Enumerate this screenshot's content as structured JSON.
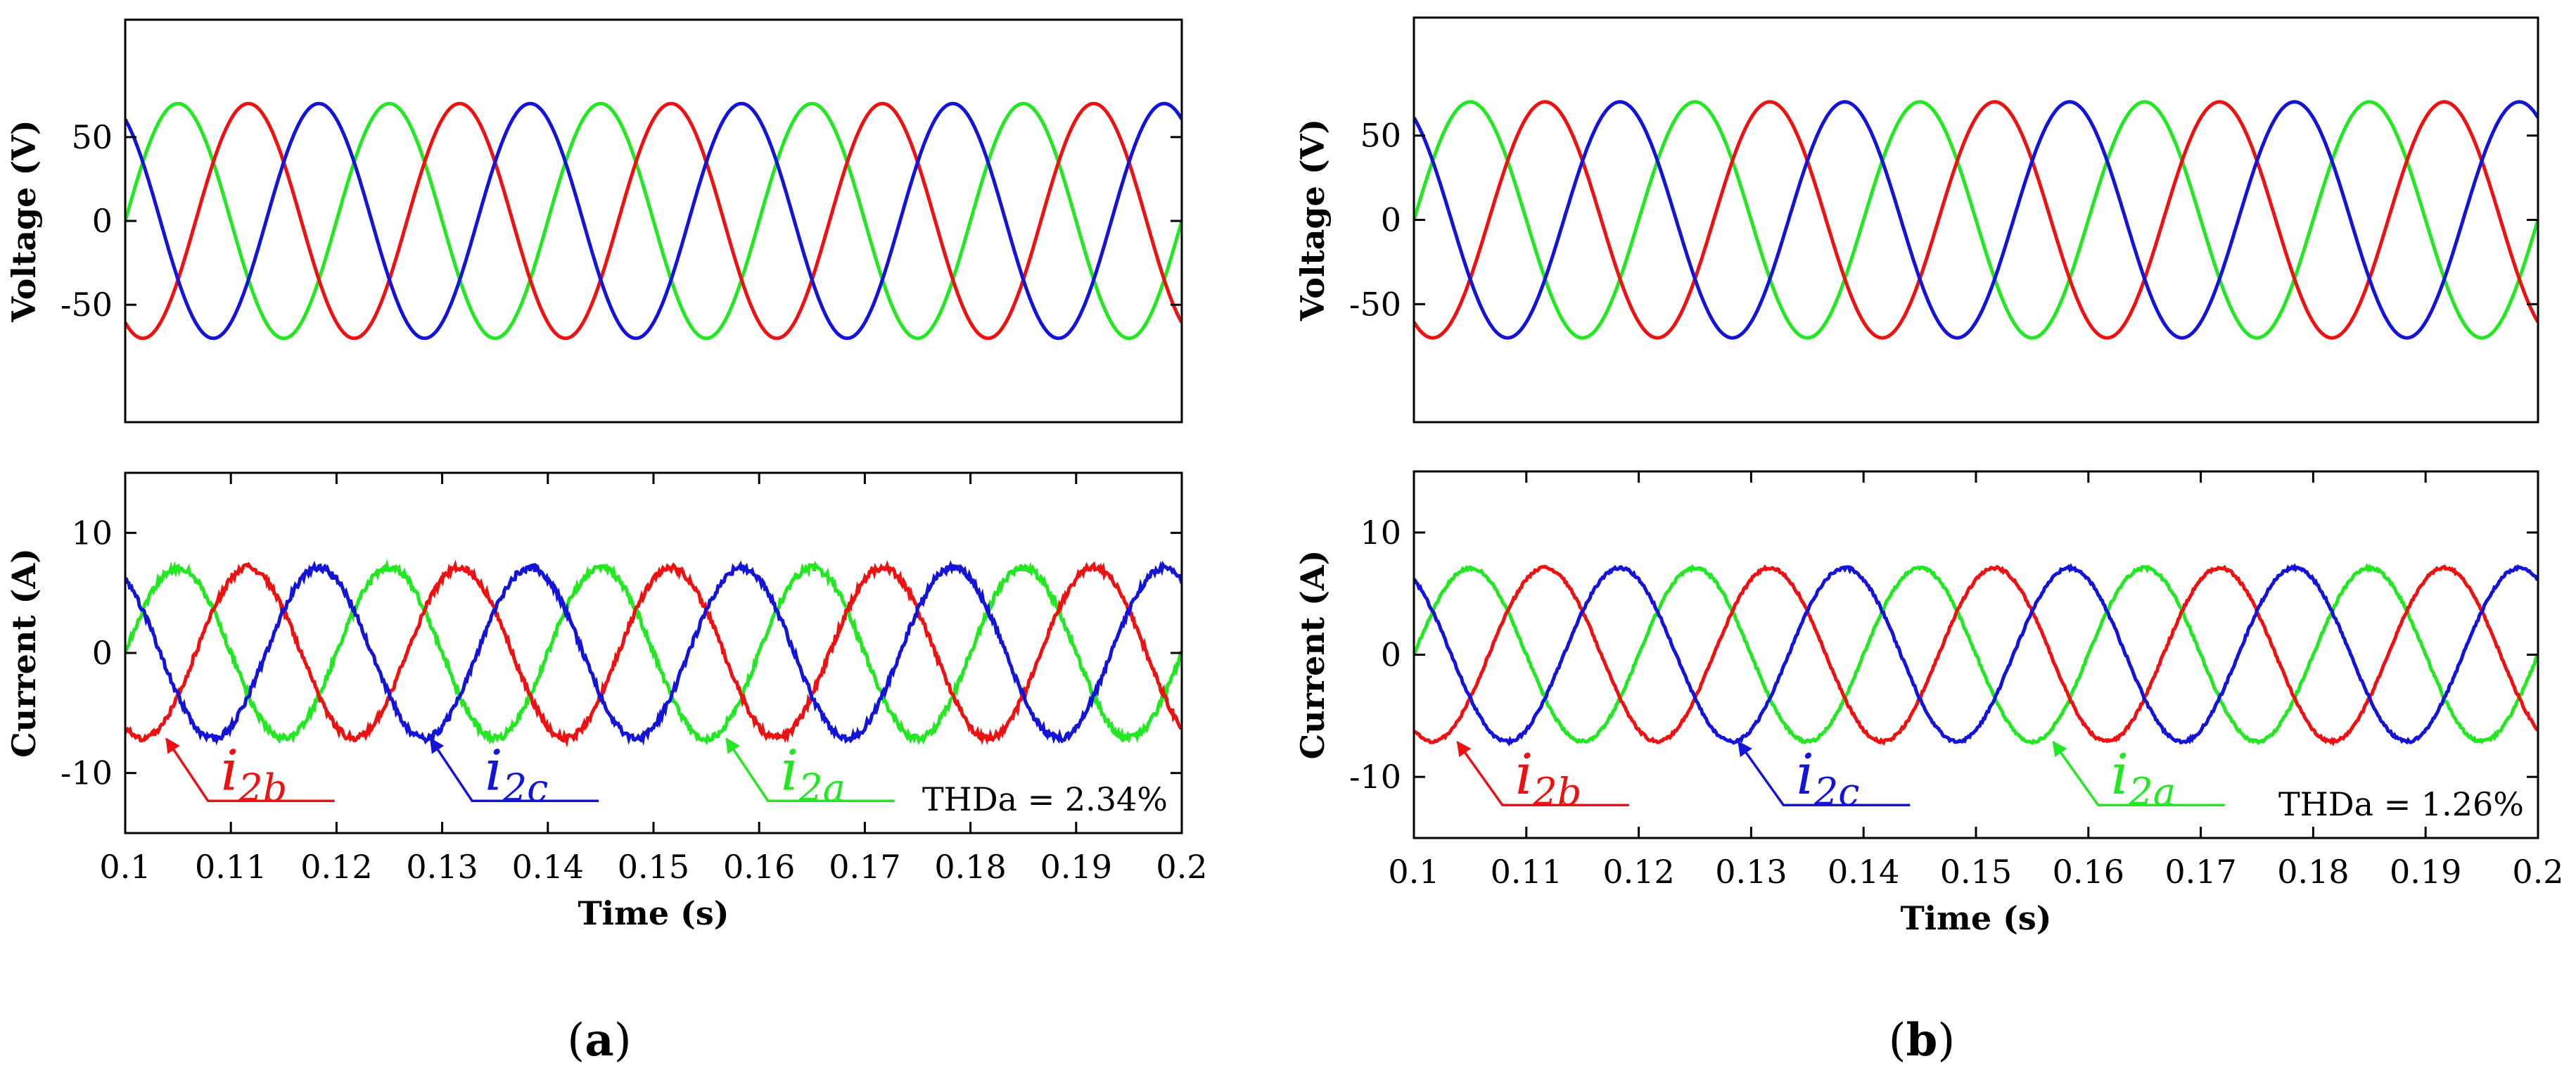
{
  "colors": {
    "phase_a": "#22e822",
    "phase_b": "#ee1111",
    "phase_c": "#1414d8"
  },
  "chart_data": [
    {
      "panel": "a",
      "caption": {
        "open": "(",
        "letter": "a",
        "close": ")"
      },
      "thd_label": "THDa = 2.34%",
      "voltage": {
        "type": "line",
        "ylabel": "Voltage (V)",
        "ylim": [
          -120,
          120
        ],
        "yticks": [
          {
            "v": 50,
            "label": "50"
          },
          {
            "v": 0,
            "label": "0"
          },
          {
            "v": -50,
            "label": "-50"
          }
        ],
        "xlim": [
          0.1,
          0.2
        ],
        "series": [
          {
            "name": "a",
            "amplitude": 70,
            "phase_deg": 0,
            "frequency_hz": 50,
            "noise": 0
          },
          {
            "name": "b",
            "amplitude": 70,
            "phase_deg": -120,
            "frequency_hz": 50,
            "noise": 0
          },
          {
            "name": "c",
            "amplitude": 70,
            "phase_deg": 120,
            "frequency_hz": 50,
            "noise": 0
          }
        ]
      },
      "current": {
        "type": "line",
        "ylabel": "Current (A)",
        "ylim": [
          -15,
          15
        ],
        "yticks": [
          {
            "v": 10,
            "label": "10"
          },
          {
            "v": 0,
            "label": "0"
          },
          {
            "v": -10,
            "label": "-10"
          }
        ],
        "xlim": [
          0.1,
          0.2
        ],
        "xlabel": "Time (s)",
        "xticks": [
          {
            "v": 0.1,
            "label": "0.1"
          },
          {
            "v": 0.11,
            "label": "0.11"
          },
          {
            "v": 0.12,
            "label": "0.12"
          },
          {
            "v": 0.13,
            "label": "0.13"
          },
          {
            "v": 0.14,
            "label": "0.14"
          },
          {
            "v": 0.15,
            "label": "0.15"
          },
          {
            "v": 0.16,
            "label": "0.16"
          },
          {
            "v": 0.17,
            "label": "0.17"
          },
          {
            "v": 0.18,
            "label": "0.18"
          },
          {
            "v": 0.19,
            "label": "0.19"
          },
          {
            "v": 0.2,
            "label": "0.2"
          }
        ],
        "series": [
          {
            "name": "a",
            "amplitude": 7.1,
            "phase_deg": 0,
            "frequency_hz": 50,
            "noise": 0.28
          },
          {
            "name": "b",
            "amplitude": 7.1,
            "phase_deg": -120,
            "frequency_hz": 50,
            "noise": 0.28
          },
          {
            "name": "c",
            "amplitude": 7.1,
            "phase_deg": 120,
            "frequency_hz": 50,
            "noise": 0.28
          }
        ],
        "annotations": [
          {
            "series": "b",
            "letter": "i",
            "sub": "2b",
            "point": [
              0.1035,
              -6.8
            ],
            "text_at": [
              0.1085,
              -11.5
            ]
          },
          {
            "series": "c",
            "letter": "i",
            "sub": "2c",
            "point": [
              0.1285,
              -6.8
            ],
            "text_at": [
              0.1335,
              -11.5
            ]
          },
          {
            "series": "a",
            "letter": "i",
            "sub": "2a",
            "point": [
              0.1565,
              -6.8
            ],
            "text_at": [
              0.1615,
              -11.5
            ]
          }
        ]
      }
    },
    {
      "panel": "b",
      "caption": {
        "open": "(",
        "letter": "b",
        "close": ")"
      },
      "thd_label": "THDa = 1.26%",
      "voltage": {
        "type": "line",
        "ylabel": "Voltage (V)",
        "ylim": [
          -120,
          120
        ],
        "yticks": [
          {
            "v": 50,
            "label": "50"
          },
          {
            "v": 0,
            "label": "0"
          },
          {
            "v": -50,
            "label": "-50"
          }
        ],
        "xlim": [
          0.1,
          0.2
        ],
        "series": [
          {
            "name": "a",
            "amplitude": 70,
            "phase_deg": 0,
            "frequency_hz": 50,
            "noise": 0
          },
          {
            "name": "b",
            "amplitude": 70,
            "phase_deg": -120,
            "frequency_hz": 50,
            "noise": 0
          },
          {
            "name": "c",
            "amplitude": 70,
            "phase_deg": 120,
            "frequency_hz": 50,
            "noise": 0
          }
        ]
      },
      "current": {
        "type": "line",
        "ylabel": "Current (A)",
        "ylim": [
          -15,
          15
        ],
        "yticks": [
          {
            "v": 10,
            "label": "10"
          },
          {
            "v": 0,
            "label": "0"
          },
          {
            "v": -10,
            "label": "-10"
          }
        ],
        "xlim": [
          0.1,
          0.2
        ],
        "xlabel": "Time (s)",
        "xticks": [
          {
            "v": 0.1,
            "label": "0.1"
          },
          {
            "v": 0.11,
            "label": "0.11"
          },
          {
            "v": 0.12,
            "label": "0.12"
          },
          {
            "v": 0.13,
            "label": "0.13"
          },
          {
            "v": 0.14,
            "label": "0.14"
          },
          {
            "v": 0.15,
            "label": "0.15"
          },
          {
            "v": 0.16,
            "label": "0.16"
          },
          {
            "v": 0.17,
            "label": "0.17"
          },
          {
            "v": 0.18,
            "label": "0.18"
          },
          {
            "v": 0.19,
            "label": "0.19"
          },
          {
            "v": 0.2,
            "label": "0.2"
          }
        ],
        "series": [
          {
            "name": "a",
            "amplitude": 7.1,
            "phase_deg": 0,
            "frequency_hz": 50,
            "noise": 0.12
          },
          {
            "name": "b",
            "amplitude": 7.1,
            "phase_deg": -120,
            "frequency_hz": 50,
            "noise": 0.12
          },
          {
            "name": "c",
            "amplitude": 7.1,
            "phase_deg": 120,
            "frequency_hz": 50,
            "noise": 0.12
          }
        ],
        "annotations": [
          {
            "series": "b",
            "letter": "i",
            "sub": "2b",
            "point": [
              0.1035,
              -6.8
            ],
            "text_at": [
              0.1085,
              -11.5
            ]
          },
          {
            "series": "c",
            "letter": "i",
            "sub": "2c",
            "point": [
              0.1285,
              -6.8
            ],
            "text_at": [
              0.1335,
              -11.5
            ]
          },
          {
            "series": "a",
            "letter": "i",
            "sub": "2a",
            "point": [
              0.1565,
              -6.8
            ],
            "text_at": [
              0.1615,
              -11.5
            ]
          }
        ]
      }
    }
  ]
}
